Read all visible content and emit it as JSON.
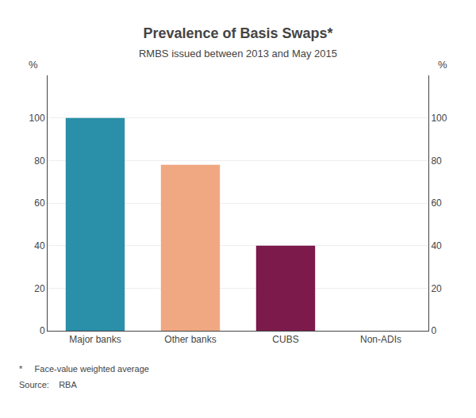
{
  "chart_data": {
    "type": "bar",
    "title": "Prevalence of Basis Swaps*",
    "subtitle": "RMBS issued between 2013 and May 2015",
    "categories": [
      "Major banks",
      "Other banks",
      "CUBS",
      "Non-ADIs"
    ],
    "values": [
      100,
      78,
      40,
      0
    ],
    "colors": [
      "#2a8fa8",
      "#f0a882",
      "#7b1a4b",
      "#ffffff"
    ],
    "ylim": [
      0,
      120
    ],
    "yticks": [
      0,
      20,
      40,
      60,
      80,
      100
    ],
    "y2lim": [
      0,
      120
    ],
    "y2ticks": [
      0,
      20,
      40,
      60,
      80,
      100
    ],
    "ylabel": "%",
    "y2label": "%",
    "grid": true,
    "annotations": [
      "*     Face-value weighted average",
      "Source:    RBA"
    ]
  }
}
